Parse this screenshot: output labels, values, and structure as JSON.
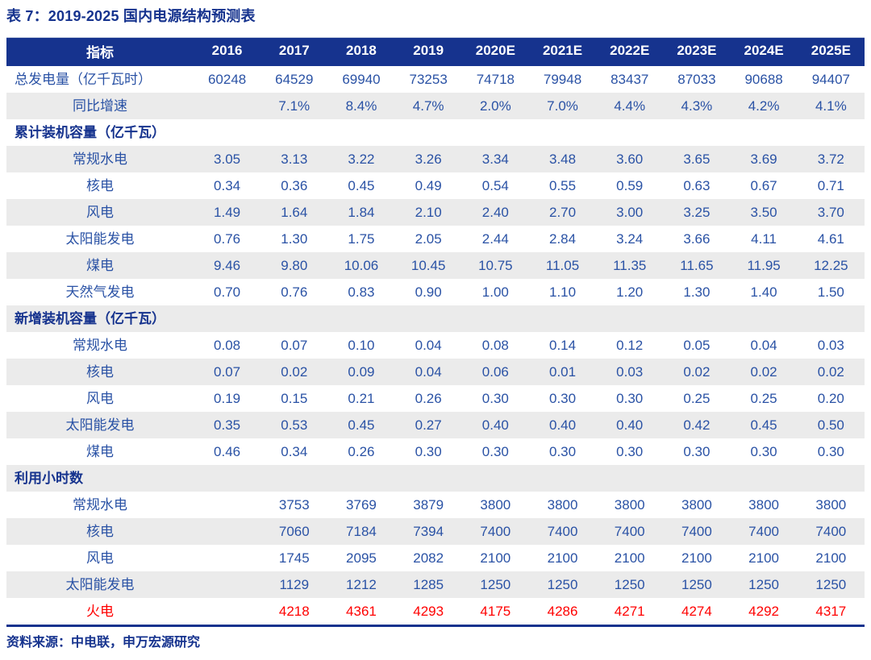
{
  "title": "表 7：2019-2025 国内电源结构预测表",
  "source": "资料来源：中电联，申万宏源研究",
  "colors": {
    "header_bg": "#16338E",
    "body_text_blue": "#2A52A5",
    "stripe_gray": "#EBEBEB",
    "highlight_red": "#FF0000",
    "divider_light": "#C5CFE2"
  },
  "chart_data": {
    "type": "table",
    "columns": [
      "指标",
      "2016",
      "2017",
      "2018",
      "2019",
      "2020E",
      "2021E",
      "2022E",
      "2023E",
      "2024E",
      "2025E"
    ],
    "rows": [
      {
        "label": "总发电量（亿千瓦时）",
        "section": false,
        "align": "left",
        "red": false,
        "values": [
          "60248",
          "64529",
          "69940",
          "73253",
          "74718",
          "79948",
          "83437",
          "87033",
          "90688",
          "94407"
        ]
      },
      {
        "label": "同比增速",
        "section": false,
        "align": "center",
        "red": false,
        "values": [
          "",
          "7.1%",
          "8.4%",
          "4.7%",
          "2.0%",
          "7.0%",
          "4.4%",
          "4.3%",
          "4.2%",
          "4.1%"
        ]
      },
      {
        "label": "累计装机容量（亿千瓦）",
        "section": true,
        "align": "left",
        "red": false,
        "values": []
      },
      {
        "label": "常规水电",
        "section": false,
        "align": "center",
        "red": false,
        "values": [
          "3.05",
          "3.13",
          "3.22",
          "3.26",
          "3.34",
          "3.48",
          "3.60",
          "3.65",
          "3.69",
          "3.72"
        ]
      },
      {
        "label": "核电",
        "section": false,
        "align": "center",
        "red": false,
        "values": [
          "0.34",
          "0.36",
          "0.45",
          "0.49",
          "0.54",
          "0.55",
          "0.59",
          "0.63",
          "0.67",
          "0.71"
        ]
      },
      {
        "label": "风电",
        "section": false,
        "align": "center",
        "red": false,
        "values": [
          "1.49",
          "1.64",
          "1.84",
          "2.10",
          "2.40",
          "2.70",
          "3.00",
          "3.25",
          "3.50",
          "3.70"
        ]
      },
      {
        "label": "太阳能发电",
        "section": false,
        "align": "center",
        "red": false,
        "values": [
          "0.76",
          "1.30",
          "1.75",
          "2.05",
          "2.44",
          "2.84",
          "3.24",
          "3.66",
          "4.11",
          "4.61"
        ]
      },
      {
        "label": "煤电",
        "section": false,
        "align": "center",
        "red": false,
        "values": [
          "9.46",
          "9.80",
          "10.06",
          "10.45",
          "10.75",
          "11.05",
          "11.35",
          "11.65",
          "11.95",
          "12.25"
        ]
      },
      {
        "label": "天然气发电",
        "section": false,
        "align": "center",
        "red": false,
        "values": [
          "0.70",
          "0.76",
          "0.83",
          "0.90",
          "1.00",
          "1.10",
          "1.20",
          "1.30",
          "1.40",
          "1.50"
        ]
      },
      {
        "label": "新增装机容量（亿千瓦）",
        "section": true,
        "align": "left",
        "red": false,
        "values": []
      },
      {
        "label": "常规水电",
        "section": false,
        "align": "center",
        "red": false,
        "values": [
          "0.08",
          "0.07",
          "0.10",
          "0.04",
          "0.08",
          "0.14",
          "0.12",
          "0.05",
          "0.04",
          "0.03"
        ]
      },
      {
        "label": "核电",
        "section": false,
        "align": "center",
        "red": false,
        "values": [
          "0.07",
          "0.02",
          "0.09",
          "0.04",
          "0.06",
          "0.01",
          "0.03",
          "0.02",
          "0.02",
          "0.02"
        ]
      },
      {
        "label": "风电",
        "section": false,
        "align": "center",
        "red": false,
        "values": [
          "0.19",
          "0.15",
          "0.21",
          "0.26",
          "0.30",
          "0.30",
          "0.30",
          "0.25",
          "0.25",
          "0.20"
        ]
      },
      {
        "label": "太阳能发电",
        "section": false,
        "align": "center",
        "red": false,
        "values": [
          "0.35",
          "0.53",
          "0.45",
          "0.27",
          "0.40",
          "0.40",
          "0.40",
          "0.42",
          "0.45",
          "0.50"
        ]
      },
      {
        "label": "煤电",
        "section": false,
        "align": "center",
        "red": false,
        "values": [
          "0.46",
          "0.34",
          "0.26",
          "0.30",
          "0.30",
          "0.30",
          "0.30",
          "0.30",
          "0.30",
          "0.30"
        ]
      },
      {
        "label": "利用小时数",
        "section": true,
        "align": "left",
        "red": false,
        "values": []
      },
      {
        "label": "常规水电",
        "section": false,
        "align": "center",
        "red": false,
        "values": [
          "",
          "3753",
          "3769",
          "3879",
          "3800",
          "3800",
          "3800",
          "3800",
          "3800",
          "3800"
        ]
      },
      {
        "label": "核电",
        "section": false,
        "align": "center",
        "red": false,
        "values": [
          "",
          "7060",
          "7184",
          "7394",
          "7400",
          "7400",
          "7400",
          "7400",
          "7400",
          "7400"
        ]
      },
      {
        "label": "风电",
        "section": false,
        "align": "center",
        "red": false,
        "values": [
          "",
          "1745",
          "2095",
          "2082",
          "2100",
          "2100",
          "2100",
          "2100",
          "2100",
          "2100"
        ]
      },
      {
        "label": "太阳能发电",
        "section": false,
        "align": "center",
        "red": false,
        "values": [
          "",
          "1129",
          "1212",
          "1285",
          "1250",
          "1250",
          "1250",
          "1250",
          "1250",
          "1250"
        ]
      },
      {
        "label": "火电",
        "section": false,
        "align": "center",
        "red": true,
        "values": [
          "",
          "4218",
          "4361",
          "4293",
          "4175",
          "4286",
          "4271",
          "4274",
          "4292",
          "4317"
        ]
      }
    ]
  }
}
